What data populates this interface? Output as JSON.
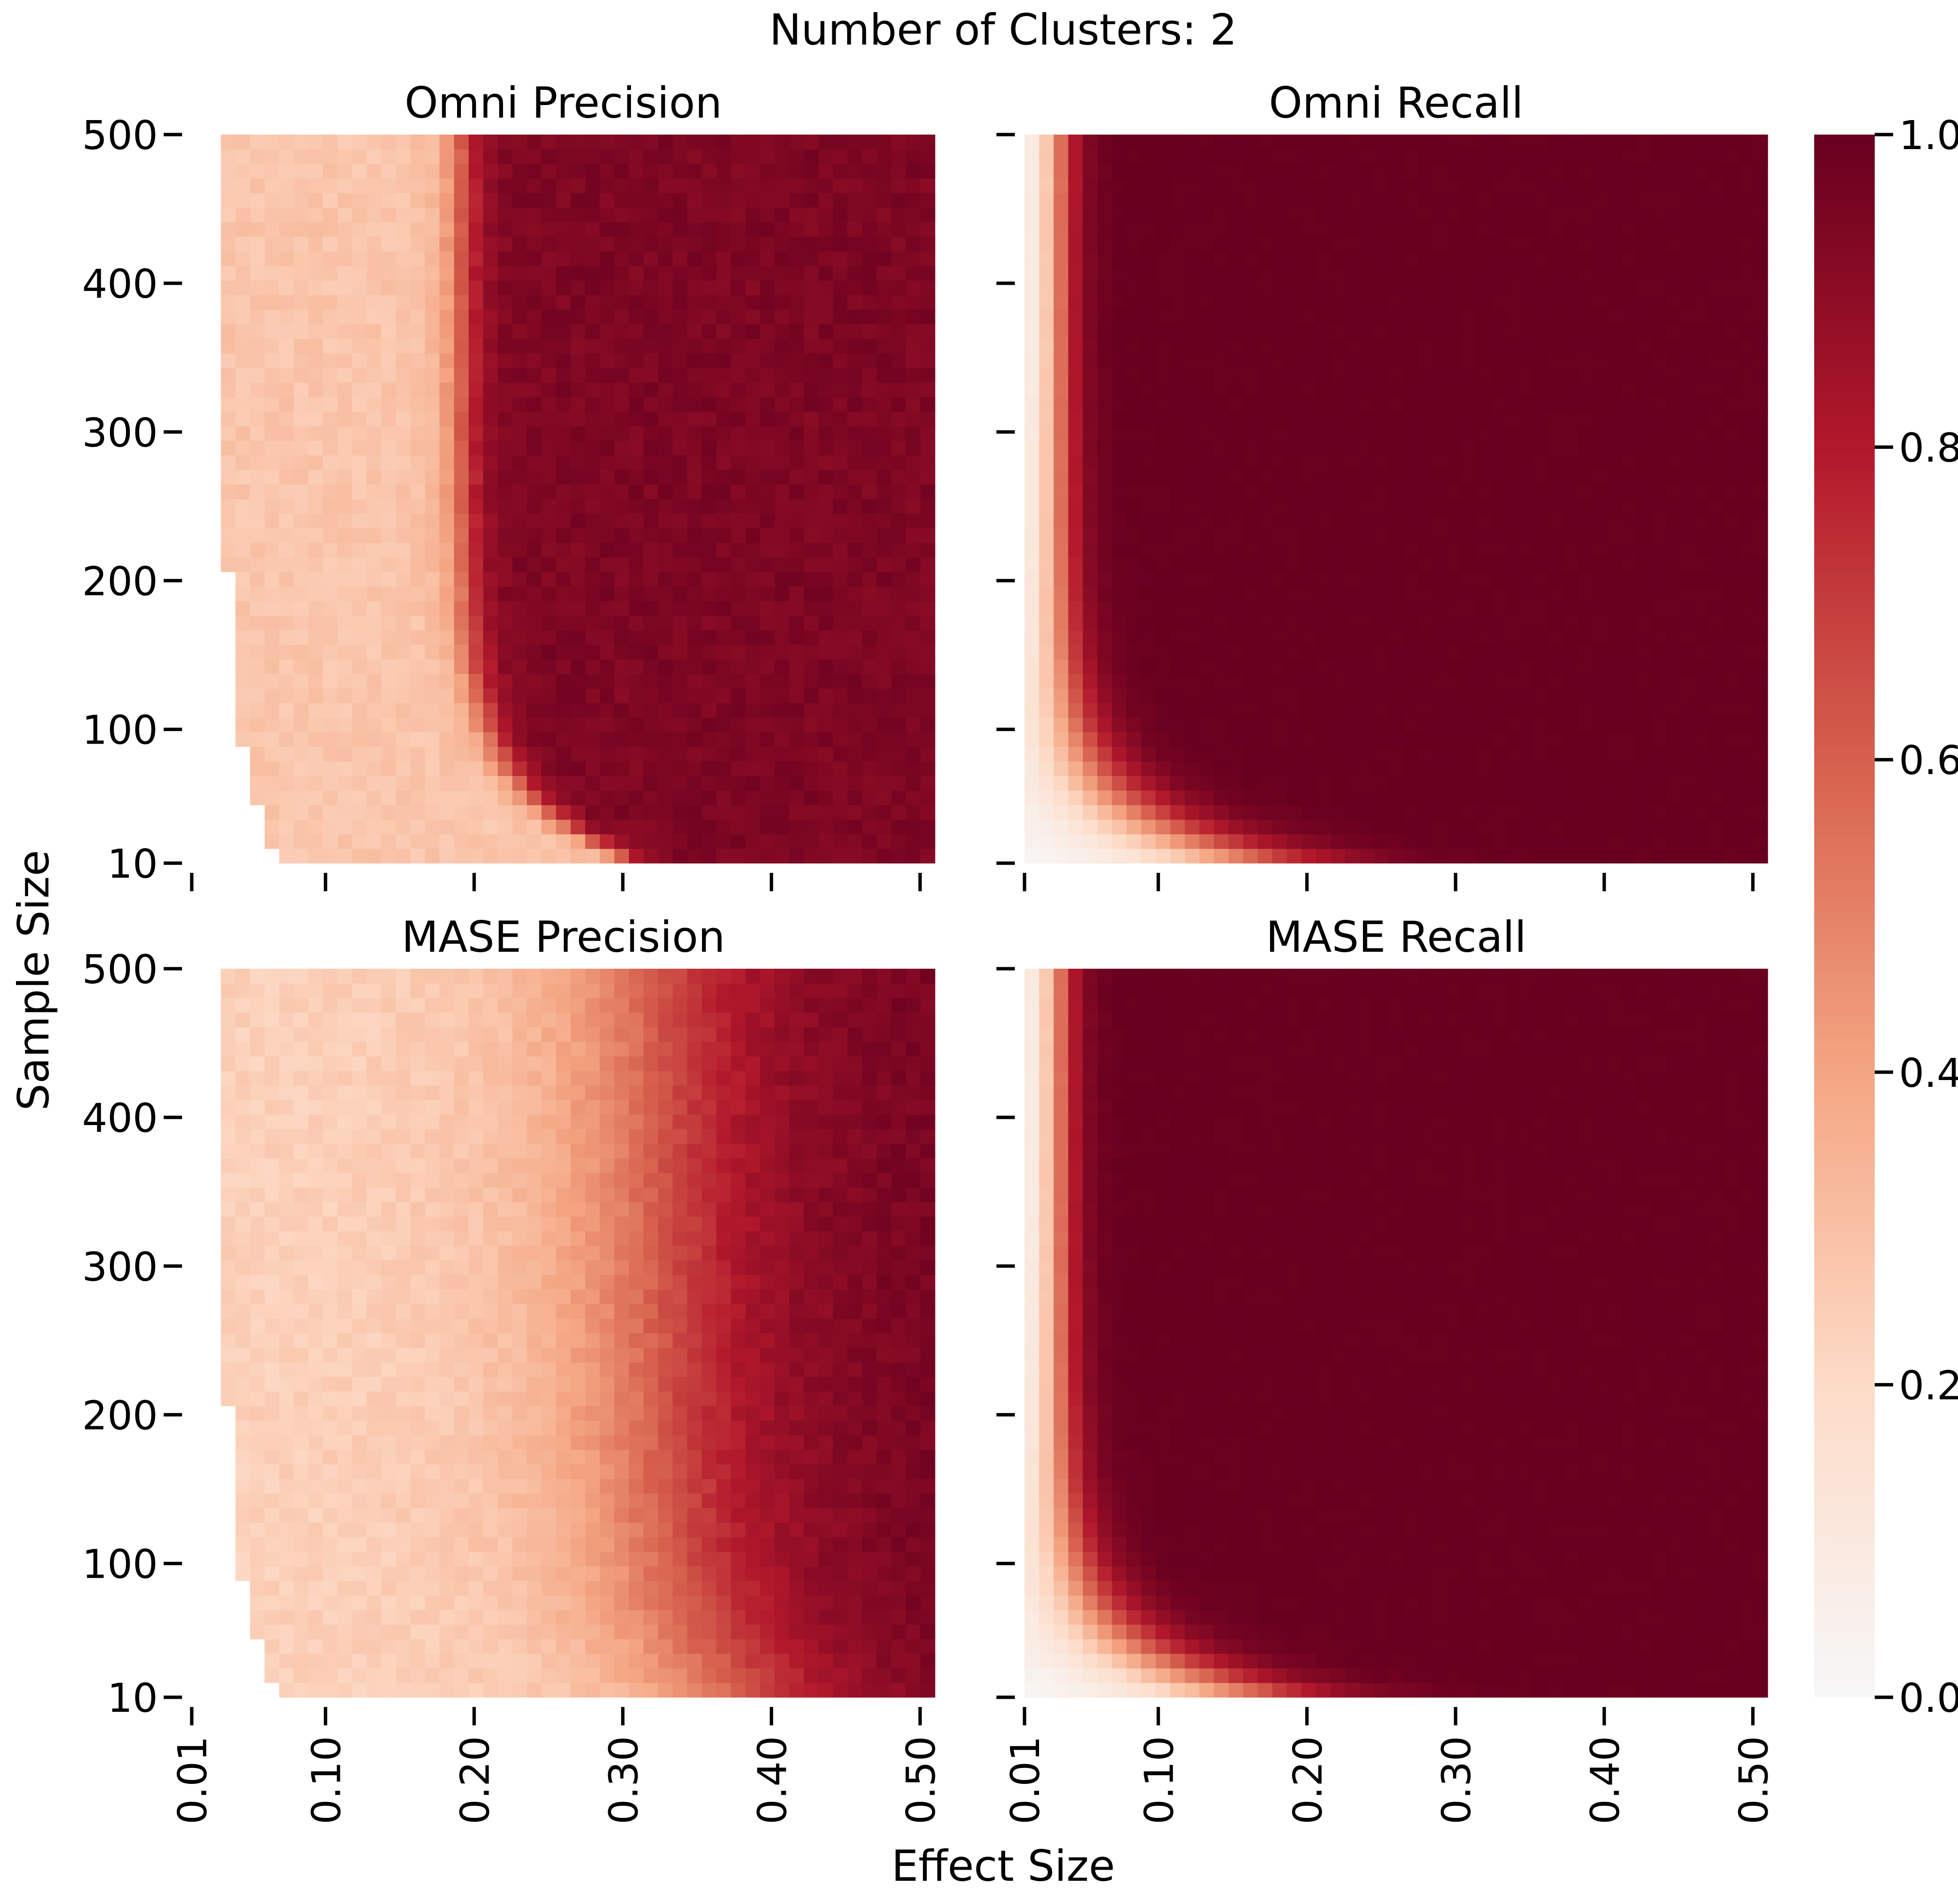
{
  "suptitle": "Number of Clusters: 2",
  "ylabel": "Sample Size",
  "xlabel": "Effect Size",
  "colormap": {
    "name": "Reds (seaborn)",
    "vmin": 0.0,
    "vmax": 1.0,
    "stops": [
      "#f7f7f7",
      "#fddbc7",
      "#f4a582",
      "#d6604d",
      "#b2182b",
      "#67001f"
    ],
    "tick_labels": [
      "0.0",
      "0.2",
      "0.4",
      "0.6",
      "0.8",
      "1.0"
    ]
  },
  "chart_data": [
    {
      "type": "heatmap",
      "title": "Omni Precision",
      "metric": "precision",
      "x_range": [
        0.01,
        0.51
      ],
      "y_range": [
        10,
        500
      ],
      "x_tick_labels": [
        "0.01",
        "0.10",
        "0.20",
        "0.30",
        "0.40",
        "0.50"
      ],
      "y_tick_labels": [
        "10",
        "100",
        "200",
        "300",
        "400",
        "500"
      ],
      "description_of_values": "low ~0.25-0.3 at small effect sizes, rising sharply to ~0.95 past effect size ~0.19 (boundary moves right as sample size decreases); blank (undefined) at lowest effect sizes for small samples"
    },
    {
      "type": "heatmap",
      "title": "Omni Recall",
      "metric": "recall",
      "x_range": [
        0.01,
        0.51
      ],
      "y_range": [
        10,
        500
      ],
      "x_tick_labels": [
        "0.01",
        "0.10",
        "0.20",
        "0.30",
        "0.40",
        "0.50"
      ],
      "y_tick_labels": [
        "10",
        "100",
        "200",
        "300",
        "400",
        "500"
      ],
      "description_of_values": "near 0 at effect size 0.01, reaching 1.0 beyond ~0.04 for large samples; transition widens for small samples"
    },
    {
      "type": "heatmap",
      "title": "MASE Precision",
      "metric": "precision",
      "x_range": [
        0.01,
        0.51
      ],
      "y_range": [
        10,
        500
      ],
      "x_tick_labels": [
        "0.01",
        "0.10",
        "0.20",
        "0.30",
        "0.40",
        "0.50"
      ],
      "y_tick_labels": [
        "10",
        "100",
        "200",
        "300",
        "400",
        "500"
      ],
      "description_of_values": "gradual rise from ~0.25 to ~0.95 across effect sizes 0.05-0.40"
    },
    {
      "type": "heatmap",
      "title": "MASE Recall",
      "metric": "recall",
      "x_range": [
        0.01,
        0.51
      ],
      "y_range": [
        10,
        500
      ],
      "x_tick_labels": [
        "0.01",
        "0.10",
        "0.20",
        "0.30",
        "0.40",
        "0.50"
      ],
      "y_tick_labels": [
        "10",
        "100",
        "200",
        "300",
        "400",
        "500"
      ],
      "description_of_values": "near 0 at effect size 0.01, reaching 1.0 beyond ~0.04 for large samples; transition widens for small samples"
    }
  ]
}
